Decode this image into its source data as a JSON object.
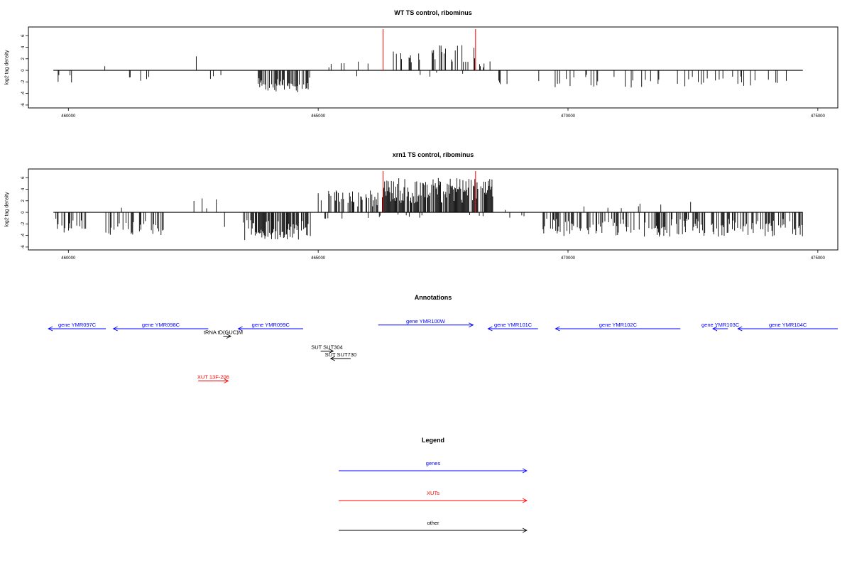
{
  "chart_data": [
    {
      "type": "bar",
      "title": "WT TS control, ribominus",
      "ylabel": "log2 tag density",
      "xlim": [
        459200,
        475400
      ],
      "ylim": [
        -6.5,
        7.5
      ],
      "xticks": [
        460000,
        465000,
        470000,
        475000
      ],
      "xtick_labels": [
        "460000",
        "465000",
        "470000",
        "475000"
      ],
      "yticks": [
        -6,
        -4,
        -2,
        0,
        2,
        4,
        6
      ],
      "ytick_labels": [
        "-6",
        "-4",
        "-2",
        "0",
        "2",
        "4",
        "6"
      ],
      "baseline": [
        459700,
        474700
      ],
      "markers": {
        "color": "#ff0000",
        "x": [
          466300,
          468150
        ]
      },
      "series": [
        {
          "color": "#000000",
          "segments": [
            {
              "x0": 459750,
              "x1": 460100,
              "density": 0.1,
              "ampDown": 2.2,
              "seed": 11
            },
            {
              "x0": 460700,
              "x1": 461700,
              "density": 0.07,
              "ampDown": 2.2,
              "ampUp": 1.2,
              "upFrac": 0.12,
              "seed": 12
            },
            {
              "x0": 462500,
              "x1": 463200,
              "density": 0.06,
              "ampUp": 2.5,
              "ampDown": 2.0,
              "upFrac": 0.55,
              "seed": 13
            },
            {
              "x0": 463800,
              "x1": 464850,
              "density": 0.55,
              "ampDown": 3.8,
              "seed": 14
            },
            {
              "x0": 465050,
              "x1": 465300,
              "density": 0.05,
              "ampUp": 1.2,
              "upFrac": 1,
              "seed": 15
            },
            {
              "x0": 465400,
              "x1": 466350,
              "density": 0.1,
              "ampUp": 2.5,
              "ampDown": 1.5,
              "upFrac": 0.7,
              "seed": 16
            },
            {
              "x0": 466400,
              "x1": 468200,
              "density": 0.22,
              "ampUp": 4.5,
              "ampDown": 1.2,
              "upFrac": 0.93,
              "seed": 17
            },
            {
              "x0": 468200,
              "x1": 468450,
              "density": 0.2,
              "ampUp": 1.8,
              "upFrac": 1,
              "seed": 18
            },
            {
              "x0": 468600,
              "x1": 468850,
              "density": 0.06,
              "ampDown": 3.0,
              "seed": 19
            },
            {
              "x0": 469400,
              "x1": 474700,
              "density": 0.13,
              "ampDown": 3.0,
              "seed": 20
            }
          ]
        }
      ]
    },
    {
      "type": "bar",
      "title": "xrn1 TS control, ribominus",
      "ylabel": "log2 tag density",
      "xlim": [
        459200,
        475400
      ],
      "ylim": [
        -6.5,
        7.5
      ],
      "xticks": [
        460000,
        465000,
        470000,
        475000
      ],
      "xtick_labels": [
        "460000",
        "465000",
        "470000",
        "475000"
      ],
      "yticks": [
        -6,
        -4,
        -2,
        0,
        2,
        4,
        6
      ],
      "ytick_labels": [
        "-6",
        "-4",
        "-2",
        "0",
        "2",
        "4",
        "6"
      ],
      "baseline": [
        459700,
        474700
      ],
      "markers": {
        "color": "#ff0000",
        "x": [
          466300,
          468150
        ]
      },
      "series": [
        {
          "color": "#000000",
          "segments": [
            {
              "x0": 459750,
              "x1": 460400,
              "density": 0.35,
              "ampDown": 3.5,
              "seed": 31
            },
            {
              "x0": 460750,
              "x1": 461900,
              "density": 0.35,
              "ampDown": 4.2,
              "ampUp": 1.2,
              "upFrac": 0.06,
              "seed": 32
            },
            {
              "x0": 462200,
              "x1": 463200,
              "density": 0.12,
              "ampUp": 2.6,
              "ampDown": 2.6,
              "upFrac": 0.55,
              "seed": 33
            },
            {
              "x0": 463500,
              "x1": 464850,
              "density": 0.7,
              "ampDown": 4.8,
              "seed": 34
            },
            {
              "x0": 465000,
              "x1": 466300,
              "density": 0.55,
              "ampUp": 3.8,
              "ampDown": 1.2,
              "upFrac": 0.82,
              "seed": 35
            },
            {
              "x0": 466300,
              "x1": 468500,
              "density": 0.9,
              "ampUp": 6.0,
              "ampDown": 1.0,
              "upFrac": 0.96,
              "seed": 36
            },
            {
              "x0": 468700,
              "x1": 468850,
              "density": 0.08,
              "ampDown": 2.5,
              "ampUp": 0.8,
              "upFrac": 0.2,
              "seed": 37
            },
            {
              "x0": 469000,
              "x1": 469150,
              "density": 0.05,
              "ampDown": 0.8,
              "seed": 38
            },
            {
              "x0": 469500,
              "x1": 474700,
              "density": 0.48,
              "ampDown": 4.2,
              "ampUp": 2.0,
              "upFrac": 0.05,
              "seed": 39
            }
          ]
        }
      ]
    },
    {
      "type": "diagram",
      "title": "Annotations",
      "colors": {
        "genes": "#0000ff",
        "XUTs": "#ff0000",
        "other": "#000000"
      },
      "features": [
        {
          "label": "gene YMR097C",
          "type": "genes",
          "dir": "left",
          "x0": 459600,
          "x1": 460750,
          "row": 0
        },
        {
          "label": "gene YMR098C",
          "type": "genes",
          "dir": "left",
          "x0": 460900,
          "x1": 462800,
          "row": 0
        },
        {
          "label": "gene YMR099C",
          "type": "genes",
          "dir": "left",
          "x0": 463400,
          "x1": 464700,
          "row": 0
        },
        {
          "label": "gene YMR100W",
          "type": "genes",
          "dir": "right",
          "x0": 466200,
          "x1": 468100,
          "row": -0.5
        },
        {
          "label": "gene YMR101C",
          "type": "genes",
          "dir": "left",
          "x0": 468400,
          "x1": 469400,
          "row": 0
        },
        {
          "label": "gene YMR102C",
          "type": "genes",
          "dir": "left",
          "x0": 469750,
          "x1": 472250,
          "row": 0
        },
        {
          "label": "gene YMR103C",
          "type": "genes",
          "dir": "left",
          "x0": 472900,
          "x1": 473200,
          "row": 0
        },
        {
          "label": "gene YMR104C",
          "type": "genes",
          "dir": "left",
          "x0": 473400,
          "x1": 475400,
          "row": 0
        },
        {
          "label": "tRNA tD(GUC)M",
          "type": "other",
          "dir": "right",
          "x0": 463100,
          "x1": 463250,
          "row": 1
        },
        {
          "label": "SUT SUT304",
          "type": "other",
          "dir": "right",
          "x0": 465050,
          "x1": 465300,
          "row": 3
        },
        {
          "label": "SUT SUT730",
          "type": "other",
          "dir": "left",
          "x0": 465250,
          "x1": 465650,
          "row": 4
        },
        {
          "label": "XUT 13F-206",
          "type": "XUTs",
          "dir": "right",
          "x0": 462600,
          "x1": 463200,
          "row": 7
        }
      ]
    },
    {
      "type": "legend",
      "title": "Legend",
      "entries": [
        {
          "label": "genes",
          "color": "#0000ff"
        },
        {
          "label": "XUTs",
          "color": "#ff0000"
        },
        {
          "label": "other",
          "color": "#000000"
        }
      ]
    }
  ]
}
